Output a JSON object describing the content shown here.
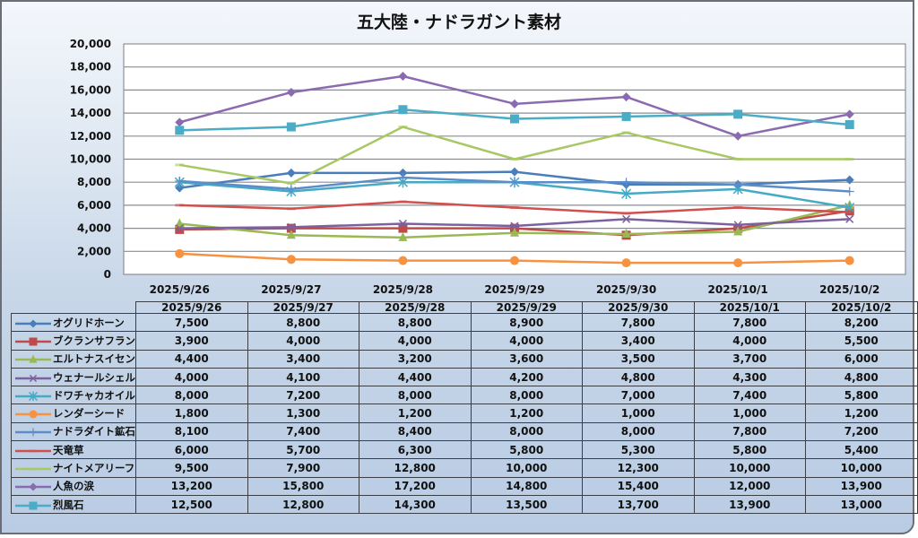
{
  "chart_data": {
    "type": "line",
    "title": "五大陸・ナドラガント素材",
    "xlabel": "",
    "ylabel": "",
    "ylim": [
      0,
      20000
    ],
    "yticks": [
      "0",
      "2,000",
      "4,000",
      "6,000",
      "8,000",
      "10,000",
      "12,000",
      "14,000",
      "16,000",
      "18,000",
      "20,000"
    ],
    "ytick_values": [
      0,
      2000,
      4000,
      6000,
      8000,
      10000,
      12000,
      14000,
      16000,
      18000,
      20000
    ],
    "grid": true,
    "legend": "data-table-bottom",
    "categories": [
      "2025/9/26",
      "2025/9/27",
      "2025/9/28",
      "2025/9/29",
      "2025/9/30",
      "2025/10/1",
      "2025/10/2"
    ],
    "series": [
      {
        "name": "オグリドホーン",
        "color": "#4a7ebb",
        "marker": "diamond",
        "values": [
          7500,
          8800,
          8800,
          8900,
          7800,
          7800,
          8200
        ],
        "labels": [
          "7,500",
          "8,800",
          "8,800",
          "8,900",
          "7,800",
          "7,800",
          "8,200"
        ]
      },
      {
        "name": "ブクランサフラン",
        "color": "#be4b48",
        "marker": "square",
        "values": [
          3900,
          4000,
          4000,
          4000,
          3400,
          4000,
          5500
        ],
        "labels": [
          "3,900",
          "4,000",
          "4,000",
          "4,000",
          "3,400",
          "4,000",
          "5,500"
        ]
      },
      {
        "name": "エルトナスイセン",
        "color": "#98b954",
        "marker": "triangle",
        "values": [
          4400,
          3400,
          3200,
          3600,
          3500,
          3700,
          6000
        ],
        "labels": [
          "4,400",
          "3,400",
          "3,200",
          "3,600",
          "3,500",
          "3,700",
          "6,000"
        ]
      },
      {
        "name": "ウェナールシェル",
        "color": "#7d60a0",
        "marker": "x",
        "values": [
          4000,
          4100,
          4400,
          4200,
          4800,
          4300,
          4800
        ],
        "labels": [
          "4,000",
          "4,100",
          "4,400",
          "4,200",
          "4,800",
          "4,300",
          "4,800"
        ]
      },
      {
        "name": "ドワチャカオイル",
        "color": "#46aac5",
        "marker": "star",
        "values": [
          8000,
          7200,
          8000,
          8000,
          7000,
          7400,
          5800
        ],
        "labels": [
          "8,000",
          "7,200",
          "8,000",
          "8,000",
          "7,000",
          "7,400",
          "5,800"
        ]
      },
      {
        "name": "レンダーシード",
        "color": "#f69240",
        "marker": "circle",
        "values": [
          1800,
          1300,
          1200,
          1200,
          1000,
          1000,
          1200
        ],
        "labels": [
          "1,800",
          "1,300",
          "1,200",
          "1,200",
          "1,000",
          "1,000",
          "1,200"
        ]
      },
      {
        "name": "ナドラダイト鉱石",
        "color": "#5b8dc9",
        "marker": "plus",
        "values": [
          8100,
          7400,
          8400,
          8000,
          8000,
          7800,
          7200
        ],
        "labels": [
          "8,100",
          "7,400",
          "8,400",
          "8,000",
          "8,000",
          "7,800",
          "7,200"
        ]
      },
      {
        "name": "天竜草",
        "color": "#d05050",
        "marker": "dash",
        "values": [
          6000,
          5700,
          6300,
          5800,
          5300,
          5800,
          5400
        ],
        "labels": [
          "6,000",
          "5,700",
          "6,300",
          "5,800",
          "5,300",
          "5,800",
          "5,400"
        ]
      },
      {
        "name": "ナイトメアリーフ",
        "color": "#a8c864",
        "marker": "dash",
        "values": [
          9500,
          7900,
          12800,
          10000,
          12300,
          10000,
          10000
        ],
        "labels": [
          "9,500",
          "7,900",
          "12,800",
          "10,000",
          "12,300",
          "10,000",
          "10,000"
        ]
      },
      {
        "name": "人魚の涙",
        "color": "#8b6aaf",
        "marker": "diamond",
        "values": [
          13200,
          15800,
          17200,
          14800,
          15400,
          12000,
          13900
        ],
        "labels": [
          "13,200",
          "15,800",
          "17,200",
          "14,800",
          "15,400",
          "12,000",
          "13,900"
        ]
      },
      {
        "name": "烈風石",
        "color": "#4bacc6",
        "marker": "square",
        "values": [
          12500,
          12800,
          14300,
          13500,
          13700,
          13900,
          13000
        ],
        "labels": [
          "12,500",
          "12,800",
          "14,300",
          "13,500",
          "13,700",
          "13,900",
          "13,000"
        ]
      }
    ]
  }
}
